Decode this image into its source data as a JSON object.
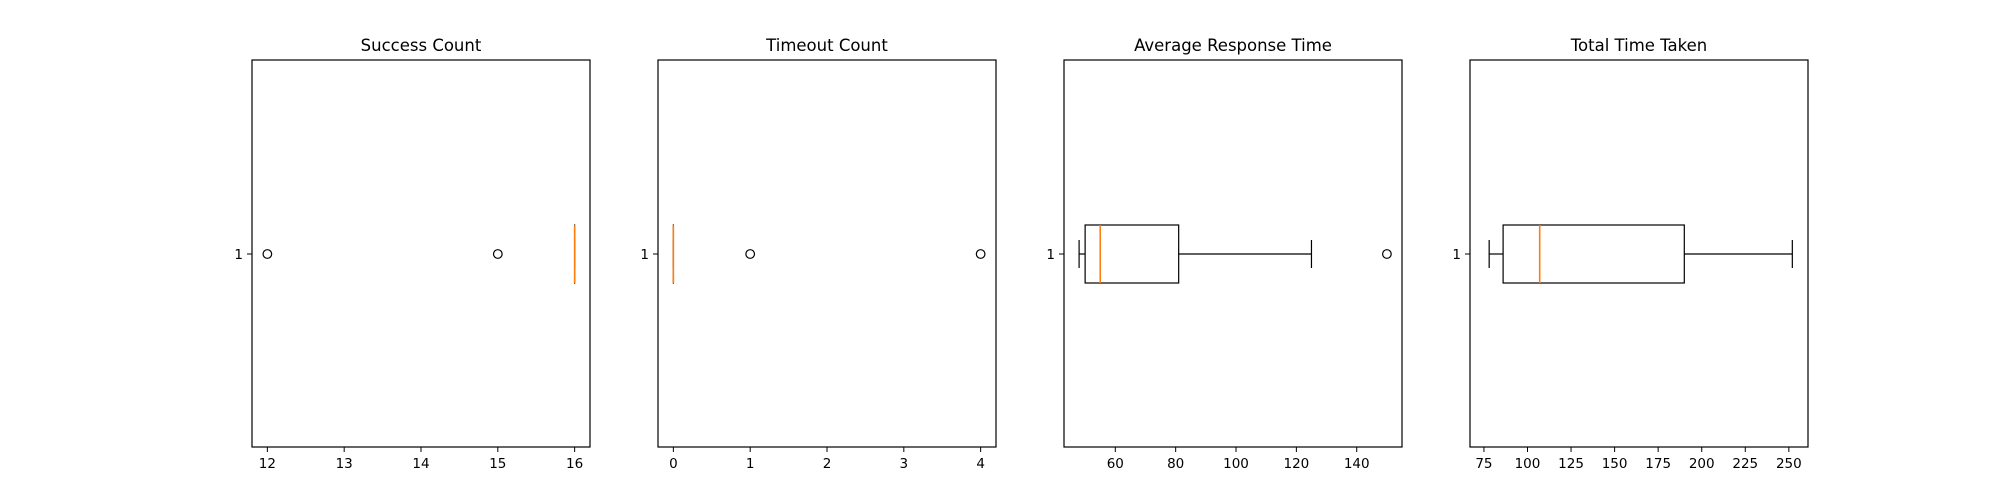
{
  "colors": {
    "box": "#000000",
    "median": "#ff7f0e",
    "flier": "#000000",
    "background": "#ffffff"
  },
  "chart_data": [
    {
      "type": "boxplot",
      "orientation": "horizontal",
      "title": "Success Count",
      "category_tick": "1",
      "xlim": [
        11.8,
        16.2
      ],
      "xticks": [
        12,
        13,
        14,
        15,
        16
      ],
      "stats": {
        "whisker_low": 16,
        "q1": 16,
        "median": 16,
        "q3": 16,
        "whisker_high": 16
      },
      "fliers": [
        12,
        15
      ]
    },
    {
      "type": "boxplot",
      "orientation": "horizontal",
      "title": "Timeout Count",
      "category_tick": "1",
      "xlim": [
        -0.2,
        4.2
      ],
      "xticks": [
        0,
        1,
        2,
        3,
        4
      ],
      "stats": {
        "whisker_low": 0,
        "q1": 0,
        "median": 0,
        "q3": 0,
        "whisker_high": 0
      },
      "fliers": [
        1,
        4
      ]
    },
    {
      "type": "boxplot",
      "orientation": "horizontal",
      "title": "Average Response Time",
      "category_tick": "1",
      "xlim": [
        43,
        155
      ],
      "xticks": [
        60,
        80,
        100,
        120,
        140
      ],
      "stats": {
        "whisker_low": 48,
        "q1": 50,
        "median": 55,
        "q3": 81,
        "whisker_high": 125
      },
      "fliers": [
        150
      ]
    },
    {
      "type": "boxplot",
      "orientation": "horizontal",
      "title": "Total Time Taken",
      "category_tick": "1",
      "xlim": [
        67,
        261
      ],
      "xticks": [
        75,
        100,
        125,
        150,
        175,
        200,
        225,
        250
      ],
      "stats": {
        "whisker_low": 78,
        "q1": 86,
        "median": 107,
        "q3": 190,
        "whisker_high": 252
      },
      "fliers": []
    }
  ]
}
